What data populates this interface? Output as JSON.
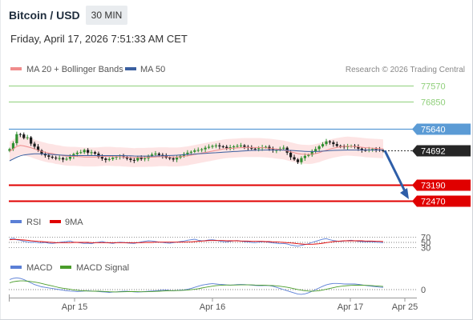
{
  "header": {
    "instrument": "Bitcoin / USD",
    "timeframe": "30 MIN",
    "datetime": "Friday, April 17, 2026 7:51:33 AM CET"
  },
  "colors": {
    "ma20": "#f08c8c",
    "bands_fill": "#fde1e1",
    "ma50": "#3a5fa0",
    "resistance_green": "#8fcf7a",
    "level_blue": "#5b9bd5",
    "support_red": "#e00000",
    "price_tag": "#262626",
    "candle_up": "#2f8f2f",
    "candle_down": "#1a1a1a",
    "arrow": "#2e5ea8",
    "rsi": "#5b7fd6",
    "rsi_ma": "#e00000",
    "macd": "#5b7fd6",
    "macd_signal": "#4a9d2a"
  },
  "legend_main": {
    "ma20": "MA 20 + Bollinger Bands",
    "ma50": "MA 50",
    "copyright": "Research © 2026 Trading Central"
  },
  "legend_rsi": {
    "rsi": "RSI",
    "ma": "9MA"
  },
  "legend_macd": {
    "macd": "MACD",
    "signal": "MACD Signal"
  },
  "chart_data": {
    "type": "line",
    "levels": [
      {
        "label": "77570",
        "value": 77570,
        "style": "green"
      },
      {
        "label": "76850",
        "value": 76850,
        "style": "green"
      },
      {
        "label": "75640",
        "value": 75640,
        "style": "blue"
      },
      {
        "label": "74692",
        "value": 74692,
        "style": "last"
      },
      {
        "label": "73190",
        "value": 73190,
        "style": "red"
      },
      {
        "label": "72470",
        "value": 72470,
        "style": "red"
      }
    ],
    "rsi_ticks": [
      {
        "label": "70",
        "value": 70
      },
      {
        "label": "50",
        "value": 50
      },
      {
        "label": "30",
        "value": 30
      }
    ],
    "macd_ticks": [
      {
        "label": "0",
        "value": 0
      }
    ],
    "x_ticks": [
      "Apr 15",
      "Apr 16",
      "Apr 17",
      "Apr 25"
    ],
    "price_series": {
      "close": [
        74760,
        75020,
        75420,
        75410,
        75250,
        75280,
        75000,
        74870,
        74700,
        74560,
        74480,
        74420,
        74380,
        74350,
        74360,
        74300,
        74330,
        74420,
        74540,
        74600,
        74620,
        74720,
        74600,
        74620,
        74560,
        74420,
        74340,
        74280,
        74320,
        74380,
        74420,
        74440,
        74400,
        74340,
        74280,
        74260,
        74400,
        74320,
        74350,
        74460,
        74520,
        74560,
        74500,
        74460,
        74380,
        74350,
        74300,
        74380,
        74460,
        74540,
        74600,
        74640,
        74700,
        74720,
        74750,
        74820,
        74860,
        74900,
        74920,
        74880,
        74860,
        74800,
        74840,
        74880,
        74900,
        74920,
        74860,
        74820,
        74780,
        74760,
        74800,
        74840,
        74860,
        74760,
        74700,
        74720,
        74780,
        74820,
        74600,
        74400,
        74300,
        74180,
        74360,
        74460,
        74500,
        74660,
        74760,
        74880,
        74980,
        75100,
        75060,
        74980,
        74900,
        74880,
        74860,
        74880,
        74900,
        74860,
        74780,
        74720,
        74700,
        74740,
        74760,
        74740,
        74700,
        74692
      ],
      "ma20": [
        74660,
        74760,
        74880,
        74920,
        74900,
        74860,
        74820,
        74760,
        74710,
        74660,
        74620,
        74580,
        74560,
        74520,
        74500,
        74470,
        74450,
        74440,
        74440,
        74430,
        74420,
        74410,
        74410,
        74410,
        74410,
        74420,
        74430,
        74440,
        74440,
        74430,
        74420,
        74420,
        74410,
        74400,
        74390,
        74380,
        74390,
        74390,
        74390,
        74400,
        74400,
        74410,
        74420,
        74420,
        74420,
        74410,
        74410,
        74410,
        74420,
        74440,
        74460,
        74490,
        74520,
        74550,
        74580,
        74610,
        74640,
        74670,
        74700,
        74730,
        74760,
        74780,
        74790,
        74800,
        74810,
        74820,
        74830,
        74830,
        74830,
        74830,
        74830,
        74820,
        74810,
        74800,
        74780,
        74760,
        74740,
        74720,
        74680,
        74640,
        74600,
        74560,
        74540,
        74530,
        74520,
        74530,
        74560,
        74600,
        74660,
        74710,
        74760,
        74800,
        74830,
        74860,
        74880,
        74890,
        74880,
        74870,
        74860,
        74840,
        74820,
        74810,
        74800,
        74790,
        74780,
        74770
      ],
      "ma50": [
        74240,
        74320,
        74400,
        74460,
        74500,
        74520,
        74540,
        74550,
        74550,
        74545,
        74540,
        74530,
        74520,
        74510,
        74500,
        74490,
        74480,
        74475,
        74470,
        74470,
        74470,
        74470,
        74470,
        74470,
        74470,
        74470,
        74470,
        74470,
        74470,
        74470,
        74470,
        74470,
        74470,
        74465,
        74460,
        74455,
        74450,
        74450,
        74450,
        74450,
        74450,
        74455,
        74460,
        74465,
        74470,
        74475,
        74480,
        74490,
        74500,
        74510,
        74520,
        74530,
        74540,
        74550,
        74560,
        74570,
        74580,
        74590,
        74600,
        74610,
        74620,
        74630,
        74640,
        74650,
        74660,
        74670,
        74680,
        74690,
        74700,
        74705,
        74710,
        74715,
        74720,
        74720,
        74720,
        74720,
        74720,
        74715,
        74710,
        74700,
        74690,
        74680,
        74670,
        74660,
        74650,
        74650,
        74650,
        74660,
        74670,
        74680,
        74690,
        74700,
        74705,
        74710,
        74715,
        74720,
        74720,
        74720,
        74720,
        74720,
        74720,
        74720,
        74720,
        74720,
        74720,
        74720
      ],
      "band_half_width": 420
    },
    "forecast_arrow": {
      "from": 74692,
      "to": 72470
    },
    "rsi_series": {
      "rsi": [
        62,
        66,
        60,
        58,
        54,
        52,
        50,
        51,
        49,
        48,
        50,
        47,
        46,
        48,
        50,
        52,
        53,
        55,
        51,
        50,
        48,
        46,
        47,
        45,
        49,
        51,
        53,
        50,
        48,
        46,
        49,
        51,
        50,
        48,
        47,
        46,
        49,
        52,
        54,
        56,
        55,
        53,
        51,
        50,
        48,
        47,
        49,
        51,
        53,
        55,
        58,
        60,
        62,
        58,
        56,
        57,
        59,
        60,
        58,
        55,
        53,
        52,
        54,
        56,
        57,
        55,
        53,
        52,
        50,
        49,
        51,
        53,
        52,
        50,
        48,
        47,
        45,
        46,
        44,
        40,
        38,
        36,
        39,
        42,
        45,
        50,
        54,
        58,
        62,
        64,
        60,
        57,
        55,
        54,
        55,
        57,
        58,
        56,
        54,
        53,
        52,
        53,
        52,
        51,
        50,
        49
      ],
      "ma9": [
        60,
        61,
        61,
        60,
        59,
        58,
        56,
        55,
        54,
        53,
        52,
        51,
        50,
        49,
        49,
        49,
        49,
        49,
        50,
        50,
        50,
        50,
        50,
        49,
        49,
        49,
        49,
        49,
        49,
        49,
        49,
        49,
        49,
        49,
        49,
        49,
        49,
        49,
        50,
        50,
        50,
        51,
        51,
        51,
        51,
        51,
        51,
        51,
        51,
        51,
        52,
        52,
        53,
        54,
        55,
        56,
        57,
        57,
        57,
        57,
        57,
        56,
        56,
        56,
        56,
        55,
        55,
        55,
        54,
        54,
        54,
        54,
        53,
        53,
        52,
        52,
        51,
        50,
        49,
        48,
        47,
        45,
        44,
        43,
        43,
        43,
        44,
        45,
        47,
        49,
        51,
        53,
        54,
        55,
        56,
        56,
        56,
        56,
        56,
        56,
        55,
        55,
        55,
        54,
        54,
        53
      ]
    },
    "macd_series": {
      "macd": [
        180,
        200,
        210,
        200,
        180,
        150,
        120,
        90,
        70,
        50,
        40,
        30,
        20,
        10,
        0,
        -10,
        -20,
        -25,
        -30,
        -35,
        -30,
        -25,
        -20,
        -25,
        -30,
        -35,
        -40,
        -45,
        -50,
        -45,
        -40,
        -35,
        -30,
        -30,
        -35,
        -40,
        -45,
        -40,
        -35,
        -30,
        -25,
        -20,
        -15,
        -10,
        -10,
        -15,
        -20,
        -15,
        -10,
        -5,
        5,
        20,
        40,
        60,
        80,
        90,
        100,
        105,
        100,
        95,
        90,
        85,
        80,
        85,
        90,
        92,
        90,
        85,
        80,
        75,
        70,
        72,
        75,
        70,
        60,
        40,
        20,
        0,
        -20,
        -40,
        -60,
        -80,
        -85,
        -75,
        -55,
        -30,
        0,
        30,
        60,
        85,
        100,
        110,
        110,
        105,
        100,
        100,
        102,
        100,
        95,
        85,
        75,
        65,
        58,
        52,
        45,
        40
      ],
      "signal": [
        120,
        140,
        150,
        155,
        155,
        150,
        145,
        135,
        125,
        110,
        95,
        80,
        65,
        50,
        35,
        25,
        15,
        5,
        -5,
        -12,
        -18,
        -22,
        -25,
        -27,
        -28,
        -29,
        -31,
        -34,
        -38,
        -40,
        -41,
        -40,
        -38,
        -37,
        -36,
        -36,
        -37,
        -38,
        -38,
        -37,
        -35,
        -32,
        -29,
        -25,
        -22,
        -20,
        -19,
        -17,
        -15,
        -12,
        -8,
        -2,
        6,
        16,
        28,
        40,
        52,
        62,
        70,
        76,
        80,
        82,
        82,
        82,
        83,
        84,
        85,
        85,
        84,
        82,
        80,
        78,
        77,
        75,
        72,
        67,
        60,
        52,
        42,
        30,
        16,
        2,
        -10,
        -20,
        -26,
        -28,
        -25,
        -18,
        -8,
        6,
        20,
        35,
        48,
        58,
        66,
        72,
        76,
        79,
        80,
        79,
        77,
        74,
        70,
        66,
        61,
        56
      ]
    }
  }
}
